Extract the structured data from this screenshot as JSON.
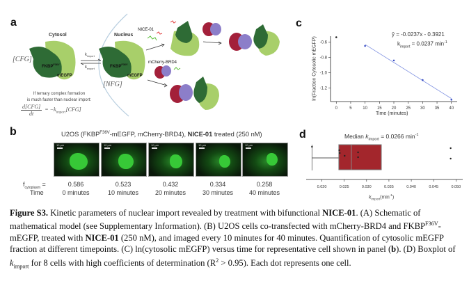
{
  "panel_a": {
    "letter": "a",
    "cytosol": "Cytosol",
    "nucleus": "Nucleus",
    "cfg": "[CFG]",
    "nfg": "[NFG]",
    "fkbp": "FKBP",
    "fkbp_sup": "F36V",
    "megfp": "mEGFP",
    "k_import": "k",
    "k_import_sub": "import",
    "k_export": "k",
    "k_export_sub": "export",
    "nice01": "NICE-01",
    "mcherry_brd4": "mCherry-BRD4",
    "note_line1": "If ternary complex formation",
    "note_line2": "is much faster than nuclear import:",
    "eq_num": "d[CFG]",
    "eq_den": "dt",
    "eq_rhs": "= −k",
    "eq_rhs_sub": "import",
    "eq_rhs_end": "[CFG]",
    "colors": {
      "dark_green": "#2e6b35",
      "light_green": "#a8cf6a",
      "crimson": "#a3203a",
      "purple": "#8c7ec9",
      "nucleus_line": "#b9cfe0"
    }
  },
  "panel_b": {
    "letter": "b",
    "title_pre": "U2OS (FKBP",
    "title_sup": "F36V",
    "title_mid": "-mEGFP, mCherry-BRD4), ",
    "title_bold": "NICE-01",
    "title_post": " treated (250 nM)",
    "scalebar": "10 µm",
    "f_label": "f",
    "f_sub": "cytoplasm",
    "f_eq": "=",
    "time_label": "Time",
    "frames": [
      {
        "f": "0.586",
        "time": "0 minutes"
      },
      {
        "f": "0.523",
        "time": "10 minutes"
      },
      {
        "f": "0.432",
        "time": "20 minutes"
      },
      {
        "f": "0.334",
        "time": "30 minutes"
      },
      {
        "f": "0.258",
        "time": "40 minutes"
      }
    ]
  },
  "chart_data": [
    {
      "type": "scatter",
      "panel": "c",
      "xlabel": "Time (minutes)",
      "ylabel": "ln(Fraction Cytosolic mEGFP)",
      "x": [
        0,
        10,
        20,
        30,
        40
      ],
      "y": [
        -0.534,
        -0.648,
        -0.839,
        -1.097,
        -1.355
      ],
      "fit": {
        "slope": -0.0237,
        "intercept": -0.3921,
        "x_range": [
          10,
          40
        ]
      },
      "annotation_eq": "ŷ = -0.0237x - 0.3921",
      "annotation_k": "k",
      "annotation_k_sub": "import",
      "annotation_k_val": " = 0.0237 min",
      "annotation_k_sup": "-1",
      "xticks": [
        "0",
        "5",
        "10",
        "15",
        "20",
        "25",
        "30",
        "35",
        "40"
      ],
      "yticks": [
        "-0.6",
        "-0.8",
        "-1.0",
        "-1.2"
      ],
      "xlim": [
        -2,
        42
      ],
      "ylim": [
        -1.38,
        -0.52
      ],
      "grid": false
    },
    {
      "type": "box",
      "panel": "d",
      "title_pre": "Median ",
      "title_k": "k",
      "title_k_sub": "import",
      "title_post": " = 0.0266 min",
      "title_sup": "-1",
      "xlabel_k": "k",
      "xlabel_sub": "import",
      "xlabel_post": "(min",
      "xlabel_sup": "-1",
      "xlabel_end": ")",
      "values": [
        0.0178,
        0.0239,
        0.024,
        0.0251,
        0.0281,
        0.0281,
        0.0488,
        0.0488
      ],
      "q1": 0.0238,
      "median": 0.0266,
      "q3": 0.0333,
      "whisker_low": 0.0178,
      "whisker_high": 0.0333,
      "xticks": [
        "0.020",
        "0.025",
        "0.030",
        "0.035",
        "0.040",
        "0.045",
        "0.050"
      ],
      "xlim": [
        0.0165,
        0.0515
      ],
      "box_color": "#a3262c"
    }
  ],
  "panel_c": {
    "letter": "c"
  },
  "panel_d": {
    "letter": "d"
  },
  "caption": {
    "fig": "Figure S3.",
    "s1": " Kinetic parameters of nuclear import revealed by treatment with bifunctional ",
    "nice": "NICE-01",
    "s2": ". (A) Schematic of mathematical model (see Supplementary Information). (B) U2OS cells co-transfected with mCherry-BRD4 and FKBP",
    "sup": "F36V",
    "s3": "-mEGFP, treated with ",
    "nice2": "NICE-01",
    "s4": " (250 nM), and imaged every 10 minutes for 40 minutes. Quantification of cytosolic mEGFP fraction at different timepoints. (C) ln(cytosolic mEGFP) versus time for representative cell shown in panel (",
    "b": "b",
    "s5": "). (D) Boxplot of ",
    "k": "k",
    "ksub": "import",
    "s6": " for 8 cells with high coefficients of determination (R",
    "r2": "2",
    "s7": " > 0.95). Each dot represents one cell."
  }
}
